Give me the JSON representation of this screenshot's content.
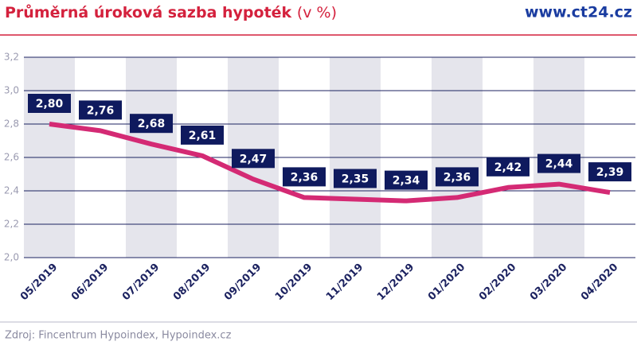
{
  "chart_data": {
    "type": "line",
    "title": "Průměrná úroková sazba hypoték",
    "title_unit": "(v %)",
    "brand": "www.ct24.cz",
    "source": "Zdroj: Fincentrum Hypoindex, Hypoindex.cz",
    "categories": [
      "05/2019",
      "06/2019",
      "07/2019",
      "08/2019",
      "09/2019",
      "10/2019",
      "11/2019",
      "12/2019",
      "01/2020",
      "02/2020",
      "03/2020",
      "04/2020"
    ],
    "values": [
      2.8,
      2.76,
      2.68,
      2.61,
      2.47,
      2.36,
      2.35,
      2.34,
      2.36,
      2.42,
      2.44,
      2.39
    ],
    "value_labels": [
      "2,80",
      "2,76",
      "2,68",
      "2,61",
      "2,47",
      "2,36",
      "2,35",
      "2,34",
      "2,36",
      "2,42",
      "2,44",
      "2,39"
    ],
    "color": "#d42a74",
    "ylim": [
      2.0,
      3.2
    ],
    "yticks": [
      {
        "value": 2.0,
        "label": "2,0"
      },
      {
        "value": 2.2,
        "label": "2,2"
      },
      {
        "value": 2.4,
        "label": "2,4"
      },
      {
        "value": 2.6,
        "label": "2,6"
      },
      {
        "value": 2.8,
        "label": "2,8"
      },
      {
        "value": 3.0,
        "label": "3,0"
      },
      {
        "value": 3.2,
        "label": "3,2"
      }
    ],
    "grid": true
  }
}
